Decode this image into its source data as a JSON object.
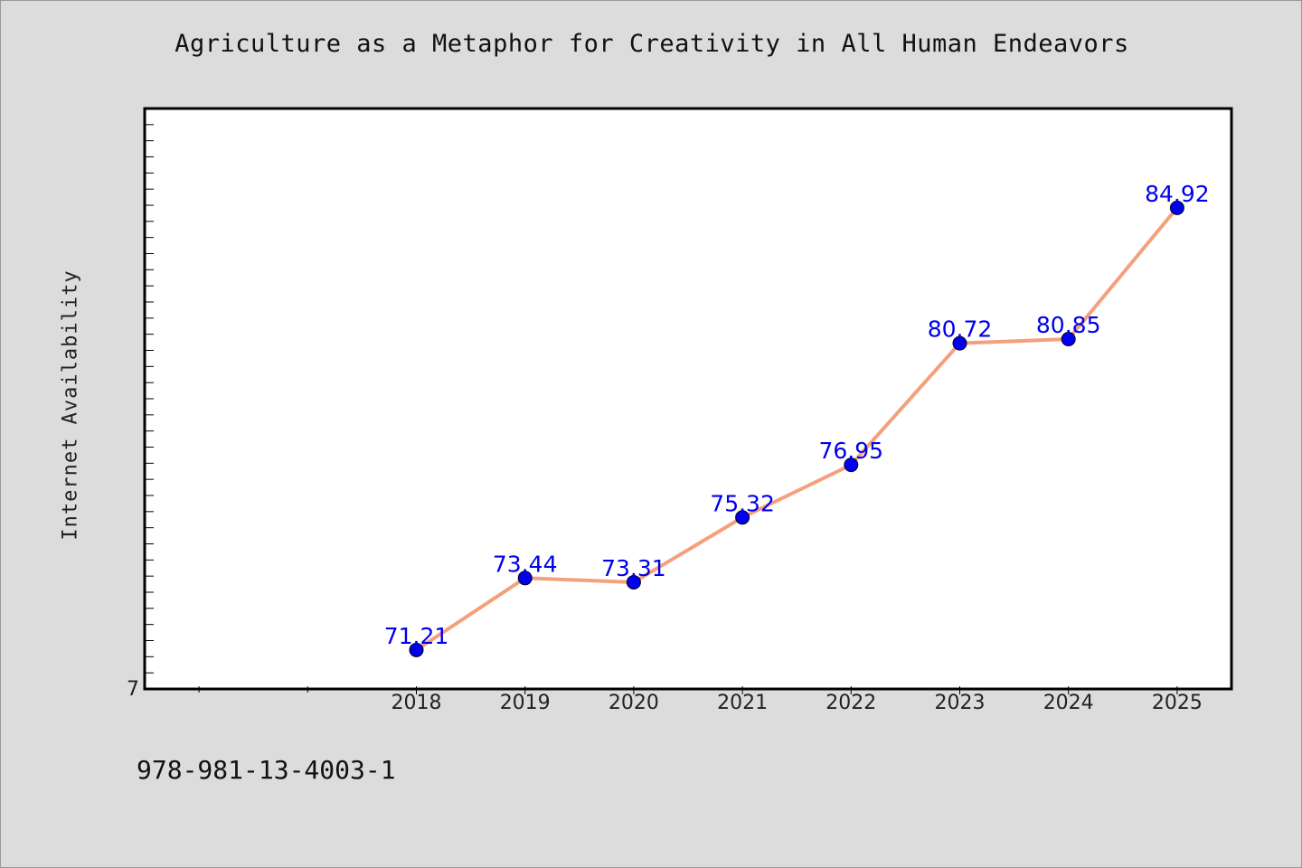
{
  "title": "Agriculture as a Metaphor for Creativity in All Human Endeavors",
  "footer_text": "978-981-13-4003-1",
  "colors": {
    "background": "#dcdcdc",
    "plot_background": "#ffffff",
    "line": "#f4a07c",
    "marker": "#0000ee",
    "data_label": "#0000ee"
  },
  "chart_data": {
    "type": "line",
    "title": "Agriculture as a Metaphor for Creativity in All Human Endeavors",
    "xlabel": "",
    "ylabel": "Internet Availability",
    "x": [
      "2018",
      "2019",
      "2020",
      "2021",
      "2022",
      "2023",
      "2024",
      "2025"
    ],
    "series": [
      {
        "values": [
          71.21,
          73.44,
          73.31,
          75.32,
          76.95,
          80.72,
          80.85,
          84.92
        ],
        "data_labels": [
          "71.21",
          "73.44",
          "73.31",
          "75.32",
          "76.95",
          "80.72",
          "80.85",
          "84.92"
        ]
      }
    ],
    "y_tick_labels": [
      "7"
    ],
    "ylim": [
      70.0,
      88.0
    ],
    "xlim": [
      "2015.5",
      "2025.5"
    ],
    "grid": false,
    "legend": "none"
  }
}
